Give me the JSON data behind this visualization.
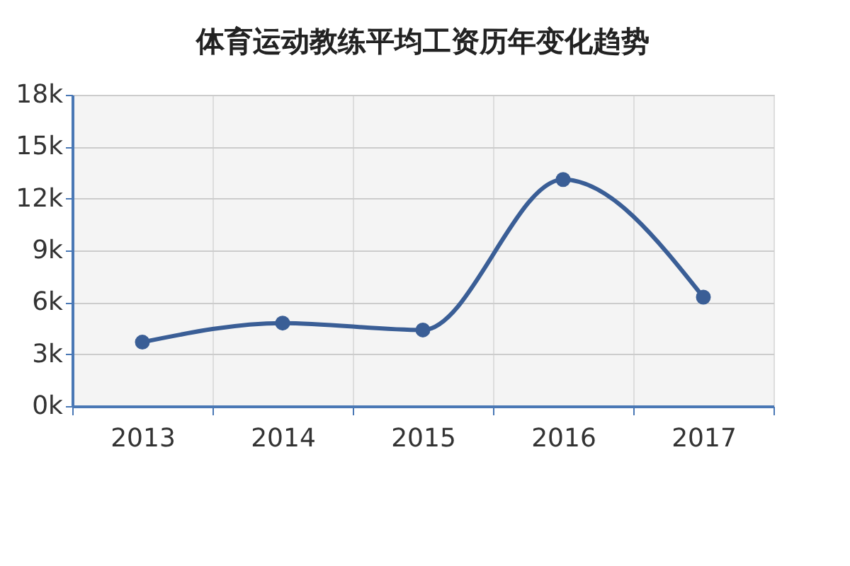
{
  "chart_data": {
    "type": "line",
    "title": "体育运动教练平均工资历年变化趋势",
    "categories": [
      "2013",
      "2014",
      "2015",
      "2016",
      "2017"
    ],
    "series": [
      {
        "color": "#3a5e96",
        "values": [
          3700,
          4800,
          4400,
          13100,
          6300
        ]
      }
    ],
    "ylim": [
      0,
      18000
    ],
    "yticks": [
      {
        "value": 0,
        "label": "0k"
      },
      {
        "value": 3000,
        "label": "3k"
      },
      {
        "value": 6000,
        "label": "6k"
      },
      {
        "value": 9000,
        "label": "9k"
      },
      {
        "value": 12000,
        "label": "12k"
      },
      {
        "value": 15000,
        "label": "15k"
      },
      {
        "value": 18000,
        "label": "18k"
      }
    ],
    "grid": true,
    "marker": "circle",
    "line_style": "solid"
  }
}
